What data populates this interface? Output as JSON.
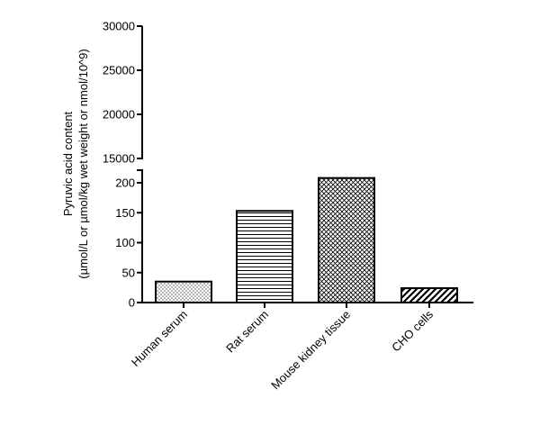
{
  "chart_data": {
    "type": "bar",
    "axis": "broken",
    "ylabel": "Pyruvic acid content",
    "ylabel2": "(µmol/L or µmol/kg wet weight or nmol/10^9)",
    "categories": [
      "Human serum",
      "Rat serum",
      "Mouse kidney tissue",
      "CHO cells"
    ],
    "values": [
      35,
      153,
      208,
      24
    ],
    "patterns": [
      "dots",
      "horizontal-lines",
      "crosshatch",
      "diagonal-lines"
    ],
    "lower_segment": {
      "ylim": [
        0,
        200
      ],
      "ticks": [
        0,
        50,
        100,
        150,
        200
      ]
    },
    "upper_segment": {
      "ylim": [
        15000,
        30000
      ],
      "ticks": [
        15000,
        20000,
        25000,
        30000
      ]
    },
    "grid": false,
    "legend": "none"
  }
}
